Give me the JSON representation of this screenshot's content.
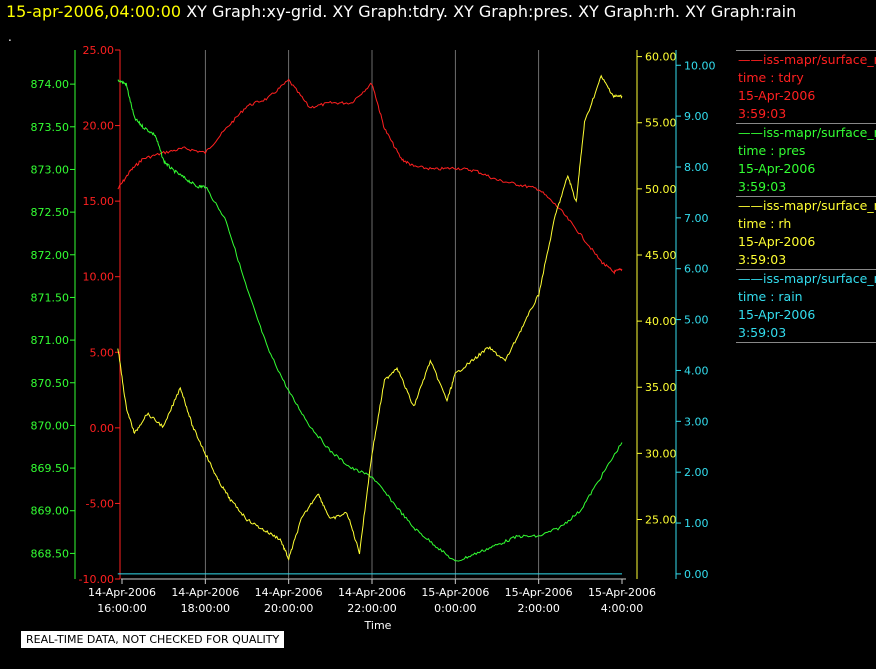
{
  "header": {
    "time": "15-apr-2006,04:00:00",
    "graphs": "XY Graph:xy-grid.  XY Graph:tdry.  XY Graph:pres.  XY Graph:rh.  XY Graph:rain"
  },
  "marker": ".",
  "note": "REAL-TIME DATA, NOT CHECKED FOR QUALITY",
  "legend": [
    {
      "name": "iss-mapr/surface_met",
      "field": "time : tdry",
      "date": "15-Apr-2006",
      "clock": "3:59:03",
      "color": "#ff2020"
    },
    {
      "name": "iss-mapr/surface_met",
      "field": "time : pres",
      "date": "15-Apr-2006",
      "clock": "3:59:03",
      "color": "#33ff33"
    },
    {
      "name": "iss-mapr/surface_met",
      "field": "time : rh",
      "date": "15-Apr-2006",
      "clock": "3:59:03",
      "color": "#ffff33"
    },
    {
      "name": "iss-mapr/surface_met",
      "field": "time : rain",
      "date": "15-Apr-2006",
      "clock": "3:59:03",
      "color": "#33ddee"
    }
  ],
  "chart_data": {
    "type": "line",
    "xlabel": "Time",
    "x_ticks": [
      {
        "date": "14-Apr-2006",
        "time": "16:00:00"
      },
      {
        "date": "14-Apr-2006",
        "time": "18:00:00"
      },
      {
        "date": "14-Apr-2006",
        "time": "20:00:00"
      },
      {
        "date": "14-Apr-2006",
        "time": "22:00:00"
      },
      {
        "date": "15-Apr-2006",
        "time": "0:00:00"
      },
      {
        "date": "15-Apr-2006",
        "time": "2:00:00"
      },
      {
        "date": "15-Apr-2006",
        "time": "4:00:00"
      }
    ],
    "x_hours": [
      0,
      2,
      4,
      6,
      8,
      10,
      12
    ],
    "grid": "vertical lines at x ticks",
    "axes": [
      {
        "id": "pres",
        "color": "#33ff33",
        "range": [
          868.2,
          874.4
        ],
        "ticks": [
          "868.50",
          "869.00",
          "869.50",
          "870.00",
          "870.50",
          "871.00",
          "871.50",
          "872.00",
          "872.50",
          "873.00",
          "873.50",
          "874.00"
        ],
        "side": "left"
      },
      {
        "id": "tdry",
        "color": "#ff2020",
        "range": [
          -10,
          25
        ],
        "ticks": [
          "-10.00",
          "-5.00",
          "0.00",
          "5.00",
          "10.00",
          "15.00",
          "20.00",
          "25.00"
        ],
        "side": "left"
      },
      {
        "id": "rh",
        "color": "#ffff33",
        "range": [
          20.5,
          60.5
        ],
        "ticks": [
          "25.00",
          "30.00",
          "35.00",
          "40.00",
          "45.00",
          "50.00",
          "55.00",
          "60.00"
        ],
        "side": "right"
      },
      {
        "id": "rain",
        "color": "#33ddee",
        "range": [
          -0.1,
          10.3
        ],
        "ticks": [
          "0.00",
          "1.00",
          "2.00",
          "3.00",
          "4.00",
          "5.00",
          "6.00",
          "7.00",
          "8.00",
          "9.00",
          "10.00"
        ],
        "side": "right"
      }
    ],
    "series": [
      {
        "name": "tdry",
        "axis": "tdry",
        "color": "#ff2020",
        "x": [
          -0.1,
          0.2,
          0.5,
          1.0,
          1.5,
          2.0,
          2.5,
          3.0,
          3.5,
          4.0,
          4.5,
          5.0,
          5.5,
          6.0,
          6.3,
          6.7,
          7.0,
          7.5,
          8.0,
          8.5,
          9.0,
          9.5,
          10.0,
          10.5,
          11.0,
          11.5,
          11.8,
          12.0
        ],
        "y": [
          15.8,
          17.0,
          17.8,
          18.2,
          18.5,
          18.2,
          19.8,
          21.3,
          21.8,
          23.0,
          21.2,
          21.5,
          21.5,
          22.8,
          19.8,
          17.8,
          17.3,
          17.1,
          17.2,
          17.0,
          16.4,
          16.1,
          15.8,
          14.5,
          12.8,
          11.0,
          10.3,
          10.5
        ]
      },
      {
        "name": "pres",
        "axis": "pres",
        "color": "#33ff33",
        "x": [
          -0.1,
          0.1,
          0.3,
          0.5,
          0.8,
          1.0,
          1.2,
          1.5,
          1.8,
          2.0,
          2.5,
          3.0,
          3.5,
          4.0,
          4.5,
          5.0,
          5.5,
          6.0,
          6.5,
          7.0,
          7.5,
          8.0,
          8.5,
          9.0,
          9.5,
          10.0,
          10.5,
          11.0,
          11.5,
          12.0
        ],
        "y": [
          874.05,
          874.0,
          873.6,
          873.5,
          873.4,
          873.1,
          873.0,
          872.9,
          872.8,
          872.8,
          872.4,
          871.6,
          870.9,
          870.4,
          870.0,
          869.7,
          869.5,
          869.4,
          869.1,
          868.8,
          868.6,
          868.4,
          868.5,
          868.6,
          868.7,
          868.7,
          868.8,
          869.0,
          869.4,
          869.8
        ]
      },
      {
        "name": "rh",
        "axis": "rh",
        "color": "#ffff33",
        "x": [
          -0.1,
          0.1,
          0.3,
          0.6,
          1.0,
          1.4,
          1.7,
          2.0,
          2.3,
          2.6,
          3.0,
          3.4,
          3.8,
          4.0,
          4.3,
          4.7,
          5.0,
          5.4,
          5.7,
          6.0,
          6.3,
          6.6,
          7.0,
          7.4,
          7.8,
          8.0,
          8.4,
          8.8,
          9.2,
          9.6,
          10.0,
          10.4,
          10.7,
          10.9,
          11.1,
          11.5,
          11.8,
          12.0
        ],
        "y": [
          38.0,
          33.5,
          31.5,
          33.0,
          32.0,
          35.0,
          32.0,
          30.0,
          28.0,
          26.5,
          25.0,
          24.2,
          23.5,
          22.0,
          25.0,
          27.0,
          25.0,
          25.5,
          22.5,
          30.0,
          35.5,
          36.5,
          33.5,
          37.0,
          34.0,
          36.0,
          37.0,
          38.0,
          37.0,
          39.5,
          42.0,
          48.0,
          51.0,
          49.0,
          55.0,
          58.5,
          57.0,
          57.0
        ]
      },
      {
        "name": "rain",
        "axis": "rain",
        "color": "#33ddee",
        "x": [
          -0.1,
          12.0
        ],
        "y": [
          0.0,
          0.0
        ]
      }
    ]
  }
}
